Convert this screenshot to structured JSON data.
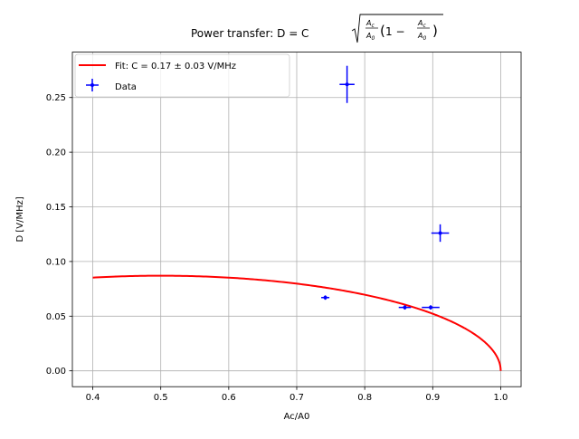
{
  "chart_data": {
    "type": "scatter",
    "title_prefix": "Power transfer: D = C",
    "xlabel": "Ac/A0",
    "ylabel": "D [V/MHz]",
    "xlim": [
      0.37,
      1.03
    ],
    "ylim": [
      -0.0145,
      0.2915
    ],
    "xticks": [
      0.4,
      0.5,
      0.6,
      0.7,
      0.8,
      0.9,
      1.0
    ],
    "xtick_labels": [
      "0.4",
      "0.5",
      "0.6",
      "0.7",
      "0.8",
      "0.9",
      "1.0"
    ],
    "yticks": [
      0.0,
      0.05,
      0.1,
      0.15,
      0.2,
      0.25
    ],
    "ytick_labels": [
      "0.00",
      "0.05",
      "0.10",
      "0.15",
      "0.20",
      "0.25"
    ],
    "grid": true,
    "legend_placement": "top-left",
    "series": [
      {
        "name": "Fit: C = 0.17 ± 0.03 V/MHz",
        "kind": "line",
        "color": "#ff0000",
        "C": 0.174,
        "x_range": [
          0.4,
          1.0
        ]
      },
      {
        "name": "Data",
        "kind": "errorbar",
        "color": "#0000ff",
        "points": [
          {
            "x": 0.742,
            "y": 0.067,
            "xerr": 0.006,
            "yerr": 0.002
          },
          {
            "x": 0.774,
            "y": 0.262,
            "xerr": 0.011,
            "yerr": 0.017
          },
          {
            "x": 0.859,
            "y": 0.058,
            "xerr": 0.009,
            "yerr": 0.002
          },
          {
            "x": 0.897,
            "y": 0.058,
            "xerr": 0.013,
            "yerr": 0.002
          },
          {
            "x": 0.911,
            "y": 0.126,
            "xerr": 0.013,
            "yerr": 0.008
          }
        ]
      }
    ]
  }
}
